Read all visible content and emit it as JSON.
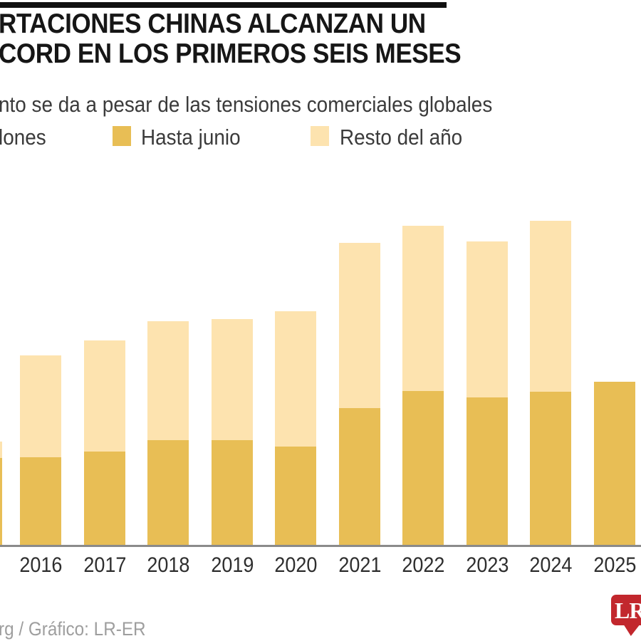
{
  "header": {
    "top_bar_color": "#111111",
    "title_line1": "RTACIONES CHINAS ALCANZAN UN",
    "title_line2": "CORD EN LOS PRIMEROS SEIS MESES",
    "subtitle": "nto se da a pesar de las tensiones comerciales globales"
  },
  "legend": {
    "unit_label": "lones",
    "items": [
      {
        "label": "Hasta junio",
        "color": "#E8BE55"
      },
      {
        "label": "Resto del año",
        "color": "#FDE3AF"
      }
    ]
  },
  "chart_data": {
    "type": "bar",
    "stacked": true,
    "grid": false,
    "numeric_axis_labels_visible": false,
    "values_are_estimates": true,
    "unit_label_visible": "lones",
    "categories": [
      "2016",
      "2017",
      "2018",
      "2019",
      "2020",
      "2021",
      "2022",
      "2023",
      "2024",
      "2025"
    ],
    "series": [
      {
        "name": "Hasta junio",
        "color": "#E8BE55",
        "values": [
          0.98,
          1.04,
          1.17,
          1.17,
          1.1,
          1.52,
          1.71,
          1.64,
          1.7,
          1.81
        ]
      },
      {
        "name": "Resto del año",
        "color": "#FDE3AF",
        "values": [
          1.12,
          1.22,
          1.31,
          1.33,
          1.49,
          1.82,
          1.82,
          1.72,
          1.88,
          0
        ]
      }
    ],
    "cropped_left_bar": {
      "hasta_junio": 0.97,
      "resto_visible": 0.18
    },
    "ylim": [
      0,
      3.7
    ],
    "legend_position": "top"
  },
  "footer": {
    "source": "rg / Gráfico: LR-ER",
    "logo_text": "LR",
    "logo_color": "#C2272D"
  }
}
